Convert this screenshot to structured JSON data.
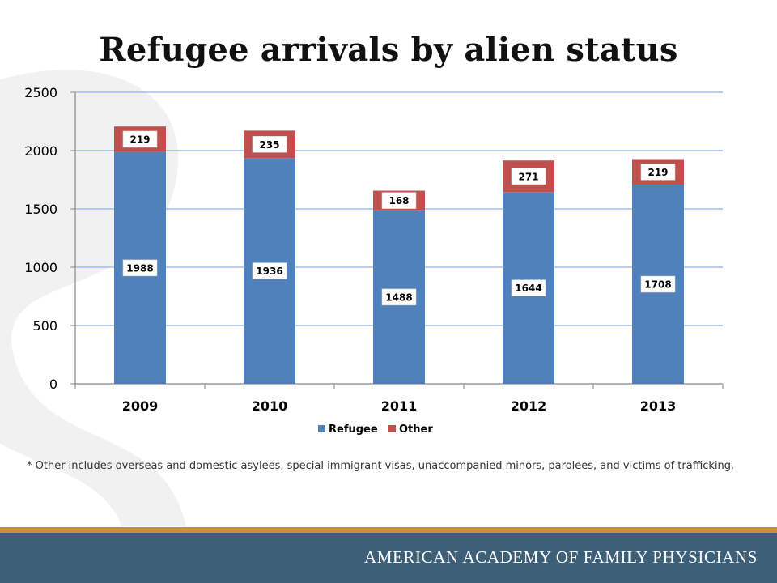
{
  "slide": {
    "title": "Refugee arrivals by alien status",
    "footnote": "* Other includes overseas and domestic asylees, special immigrant visas, unaccompanied minors, parolees, and victims of trafficking.",
    "organization": "AMERICAN ACADEMY OF FAMILY PHYSICIANS"
  },
  "colors": {
    "refugee": "#4F81BD",
    "other": "#C0504D",
    "grid": "#8EB4E3",
    "axis": "#868686",
    "footer_bar": "#3E5F78",
    "footer_gold": "#C8912E",
    "watermark": "#F1F1F1"
  },
  "chart_data": {
    "type": "bar",
    "stacked": true,
    "categories": [
      "2009",
      "2010",
      "2011",
      "2012",
      "2013"
    ],
    "series": [
      {
        "name": "Refugee",
        "values": [
          1988,
          1936,
          1488,
          1644,
          1708
        ]
      },
      {
        "name": "Other",
        "values": [
          219,
          235,
          168,
          271,
          219
        ]
      }
    ],
    "data_labels": [
      [
        "1988",
        "1936",
        "1488",
        "1644",
        "1708"
      ],
      [
        "219",
        "235",
        "168",
        "271",
        "219"
      ]
    ],
    "ylim": [
      0,
      2500
    ],
    "yticks": [
      "0",
      "500",
      "1000",
      "1500",
      "2000",
      "2500"
    ],
    "grid": true,
    "legend": "bottom"
  }
}
